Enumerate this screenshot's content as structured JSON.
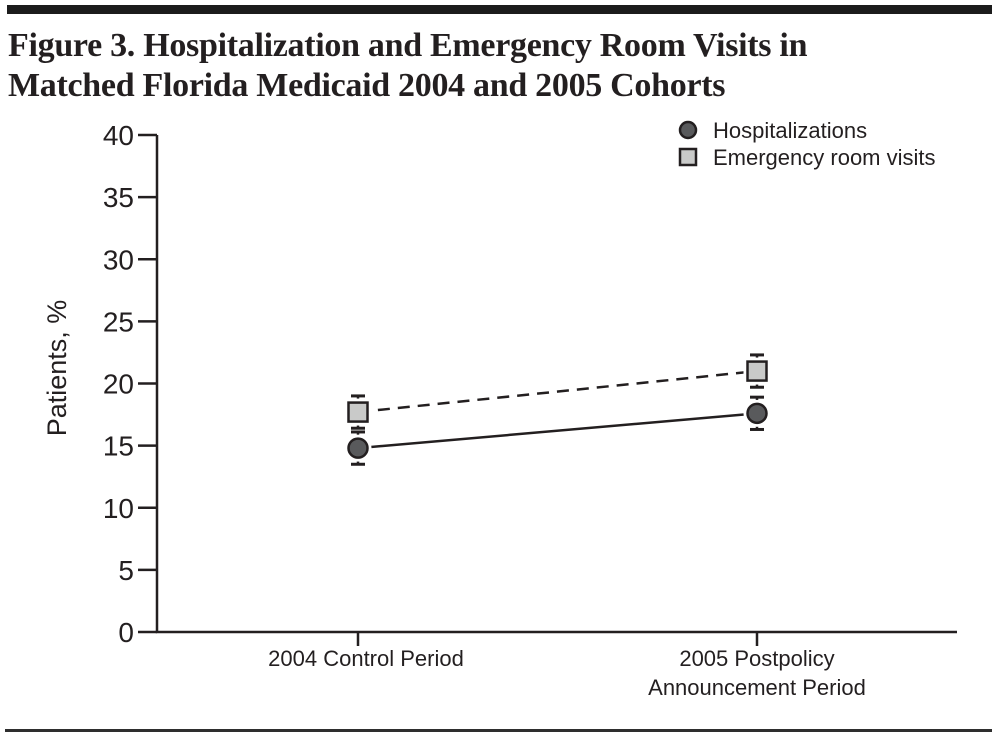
{
  "figure": {
    "title_line1": "Figure 3. Hospitalization and Emergency Room Visits in",
    "title_line2": "Matched Florida Medicaid 2004 and 2005 Cohorts"
  },
  "chart_data": {
    "type": "line",
    "title": "Figure 3. Hospitalization and Emergency Room Visits in Matched Florida Medicaid 2004 and 2005 Cohorts",
    "categories": [
      "2004 Control Period",
      "2005 Postpolicy Announcement Period"
    ],
    "x_tick_labels": [
      [
        "2004 Control Period"
      ],
      [
        "2005 Postpolicy",
        "Announcement Period"
      ]
    ],
    "series": [
      {
        "name": "Hospitalizations",
        "marker": "circle",
        "line_style": "solid",
        "marker_fill": "#595a5c",
        "values": [
          14.8,
          17.6
        ],
        "error": [
          1.3,
          1.3
        ]
      },
      {
        "name": "Emergency room visits",
        "marker": "square",
        "line_style": "dashed",
        "marker_fill": "#c9cac9",
        "values": [
          17.7,
          21.0
        ],
        "error": [
          1.3,
          1.3
        ]
      }
    ],
    "xlabel": "",
    "ylabel": "Patients, %",
    "ylim": [
      0,
      40
    ],
    "yticks": [
      0,
      5,
      10,
      15,
      20,
      25,
      30,
      35,
      40
    ],
    "grid": false,
    "legend_position": "top-right",
    "colors": {
      "axis": "#231f20",
      "text": "#231f20",
      "hospitalizations_fill": "#595a5c",
      "emergency_fill": "#c9cac9"
    }
  }
}
